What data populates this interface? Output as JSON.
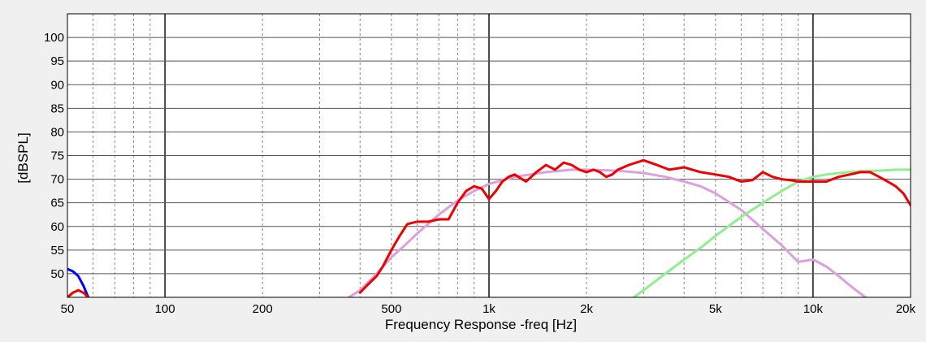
{
  "chart_data": {
    "type": "line",
    "title": "",
    "xlabel": "Frequency Response -freq [Hz]",
    "ylabel": "[dBSPL]",
    "x_scale": "log",
    "xlim": [
      50,
      20000
    ],
    "ylim": [
      45,
      105
    ],
    "grid": true,
    "x_ticks": [
      {
        "value": 50,
        "label": "50"
      },
      {
        "value": 100,
        "label": "100"
      },
      {
        "value": 200,
        "label": "200"
      },
      {
        "value": 500,
        "label": "500"
      },
      {
        "value": 1000,
        "label": "1k"
      },
      {
        "value": 2000,
        "label": "2k"
      },
      {
        "value": 5000,
        "label": "5k"
      },
      {
        "value": 10000,
        "label": "10k"
      },
      {
        "value": 20000,
        "label": "20k"
      }
    ],
    "y_ticks": [
      {
        "value": 50,
        "label": "50"
      },
      {
        "value": 55,
        "label": "55"
      },
      {
        "value": 60,
        "label": "60"
      },
      {
        "value": 65,
        "label": "65"
      },
      {
        "value": 70,
        "label": "70"
      },
      {
        "value": 75,
        "label": "75"
      },
      {
        "value": 80,
        "label": "80"
      },
      {
        "value": 85,
        "label": "85"
      },
      {
        "value": 90,
        "label": "90"
      },
      {
        "value": 95,
        "label": "95"
      },
      {
        "value": 100,
        "label": "100"
      }
    ],
    "series": [
      {
        "color": "#dda0dd",
        "x": [
          370,
          400,
          450,
          500,
          550,
          600,
          700,
          800,
          900,
          1000,
          1200,
          1500,
          1800,
          2000,
          2500,
          3000,
          3500,
          4000,
          4500,
          5000,
          6000,
          7000,
          8000,
          9000,
          10000,
          11000,
          12000,
          13000,
          14500
        ],
        "y": [
          45,
          46.5,
          50,
          53.5,
          56,
          58.5,
          62.5,
          65.5,
          67.5,
          69,
          70.5,
          71.5,
          72,
          72,
          71.8,
          71.3,
          70.5,
          69.5,
          68.5,
          67,
          63.5,
          59.5,
          56,
          52.5,
          53,
          51.5,
          49.5,
          47.5,
          45
        ]
      },
      {
        "color": "#90ee90",
        "x": [
          2800,
          3000,
          3500,
          4000,
          4500,
          5000,
          6000,
          7000,
          8000,
          9000,
          10000,
          11000,
          12000,
          13000,
          14000,
          16000,
          18000,
          20000
        ],
        "y": [
          45,
          46.5,
          50,
          53,
          55.5,
          58,
          62,
          65,
          67.5,
          69.5,
          70.5,
          71,
          71.3,
          71.5,
          71.7,
          71.8,
          72,
          72
        ]
      },
      {
        "color": "#0000ff",
        "x": [
          50,
          52,
          54,
          56,
          58
        ],
        "y": [
          51,
          50.5,
          49.5,
          47.5,
          45
        ]
      },
      {
        "color": "#ee0000",
        "x": [
          50,
          52,
          54,
          56,
          58,
          380,
          400,
          420,
          450,
          470,
          500,
          530,
          560,
          600,
          650,
          700,
          750,
          800,
          850,
          900,
          950,
          1000,
          1050,
          1100,
          1150,
          1200,
          1300,
          1350,
          1400,
          1500,
          1600,
          1700,
          1800,
          1900,
          2000,
          2100,
          2200,
          2300,
          2400,
          2500,
          2700,
          3000,
          3300,
          3600,
          4000,
          4500,
          5000,
          5500,
          6000,
          6500,
          7000,
          7500,
          8000,
          8500,
          9000,
          10000,
          11000,
          12000,
          13000,
          14000,
          15000,
          16000,
          17000,
          18000,
          19000,
          20000
        ],
        "y": [
          45,
          46,
          46.5,
          46,
          45,
          null,
          46,
          47.5,
          49.5,
          51.5,
          55,
          58,
          60.5,
          61,
          61,
          61.5,
          61.5,
          65,
          67.5,
          68.5,
          68,
          65.8,
          67.5,
          69.5,
          70.5,
          71,
          69.5,
          70.5,
          71.5,
          73,
          72,
          73.5,
          73,
          72,
          71.5,
          72,
          71.5,
          70.5,
          71,
          72,
          73,
          74,
          73,
          72,
          72.5,
          71.5,
          71,
          70.5,
          69.5,
          69.8,
          71.5,
          70.5,
          70,
          69.8,
          69.5,
          69.5,
          69.5,
          70.5,
          71,
          71.5,
          71.5,
          70.5,
          69.5,
          68.5,
          67,
          64.5
        ]
      }
    ]
  }
}
